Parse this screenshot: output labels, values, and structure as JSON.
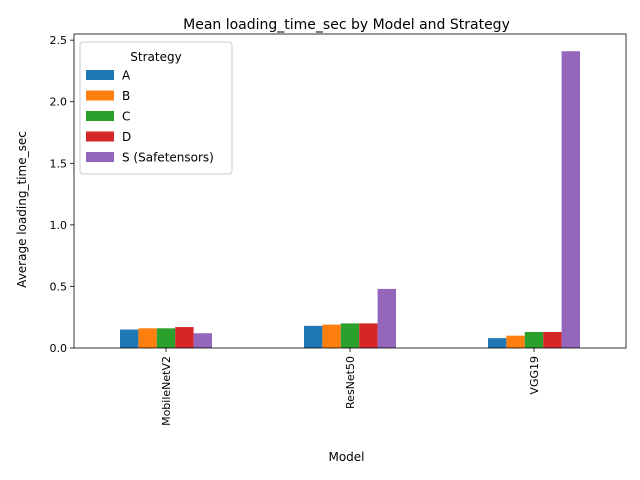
{
  "chart_data": {
    "type": "bar",
    "title": "Mean loading_time_sec by Model and Strategy",
    "xlabel": "Model",
    "ylabel": "Average loading_time_sec",
    "categories": [
      "MobileNetV2",
      "ResNet50",
      "VGG19"
    ],
    "ylim": [
      0,
      2.55
    ],
    "yticks": [
      "0.0",
      "0.5",
      "1.0",
      "1.5",
      "2.0",
      "2.5"
    ],
    "legend": {
      "title": "Strategy",
      "placement": "top-left"
    },
    "grid": false,
    "series": [
      {
        "name": "A",
        "color": "#1f77b4",
        "values": [
          0.15,
          0.18,
          0.08
        ]
      },
      {
        "name": "B",
        "color": "#ff7f0e",
        "values": [
          0.16,
          0.19,
          0.1
        ]
      },
      {
        "name": "C",
        "color": "#2ca02c",
        "values": [
          0.16,
          0.2,
          0.13
        ]
      },
      {
        "name": "D",
        "color": "#d62728",
        "values": [
          0.17,
          0.2,
          0.13
        ]
      },
      {
        "name": "S (Safetensors)",
        "color": "#9467bd",
        "values": [
          0.12,
          0.48,
          2.41
        ]
      }
    ]
  }
}
